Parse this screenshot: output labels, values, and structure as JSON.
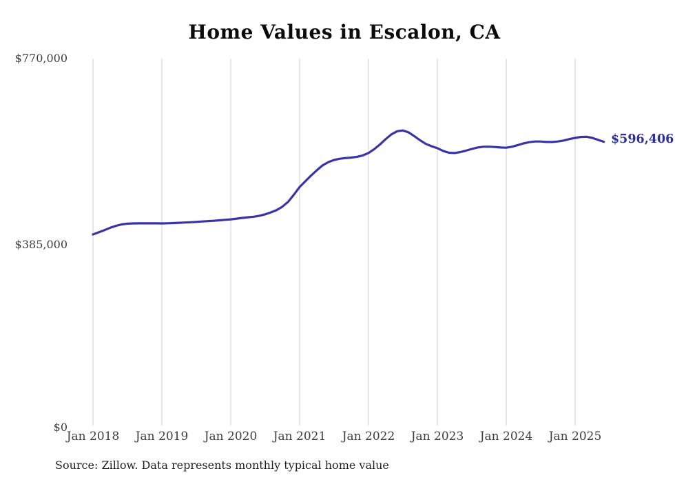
{
  "header": {
    "title": "Home Values in Escalon, CA"
  },
  "footer": {
    "source_note": "Source: Zillow. Data represents monthly typical home value"
  },
  "annotation": {
    "end_value_label": "$596,406"
  },
  "colors": {
    "line": "#3834a4",
    "end_label": "#2d2d9d",
    "grid": "#cfcfcf",
    "axis_text": "#3d3d3d",
    "title_text": "#0a0a0a",
    "footer_text": "#1f1f1f",
    "background": "#ffffff"
  },
  "chart_data": {
    "type": "line",
    "title": "Home Values in Escalon, CA",
    "xlabel": "",
    "ylabel": "",
    "x_tick_labels": [
      "Jan 2018",
      "Jan 2019",
      "Jan 2020",
      "Jan 2021",
      "Jan 2022",
      "Jan 2023",
      "Jan 2024",
      "Jan 2025"
    ],
    "y_tick_labels": [
      "$770,000",
      "$385,000",
      "$0"
    ],
    "y_tick_values": [
      770000,
      385000,
      0
    ],
    "ylim": [
      0,
      770000
    ],
    "grid": "vertical-yearly",
    "legend_position": "none",
    "x_start": "Jan 2018",
    "x_interval": "monthly",
    "x_end": "Jun 2025",
    "end_value": 596406,
    "series": [
      {
        "name": "Typical home value",
        "values": [
          403000,
          407500,
          412000,
          417000,
          421000,
          424000,
          425500,
          426000,
          426200,
          426300,
          426200,
          426100,
          426000,
          426300,
          426800,
          427300,
          427900,
          428500,
          429200,
          430000,
          430700,
          431500,
          432500,
          433500,
          434500,
          436000,
          437500,
          438800,
          440000,
          442000,
          445000,
          449000,
          454000,
          461000,
          471000,
          486000,
          502000,
          514000,
          526000,
          537000,
          547000,
          554000,
          558500,
          561000,
          562500,
          563500,
          565000,
          568000,
          573000,
          581000,
          591000,
          602000,
          612000,
          618500,
          620000,
          616000,
          608000,
          599500,
          592000,
          587000,
          583000,
          577500,
          573500,
          573000,
          575000,
          578000,
          581500,
          584500,
          586000,
          586200,
          585500,
          584500,
          584000,
          586000,
          589500,
          593000,
          595500,
          597000,
          597000,
          596000,
          596000,
          597000,
          599000,
          602000,
          604500,
          606500,
          607000,
          604500,
          600500,
          596406
        ]
      }
    ]
  }
}
